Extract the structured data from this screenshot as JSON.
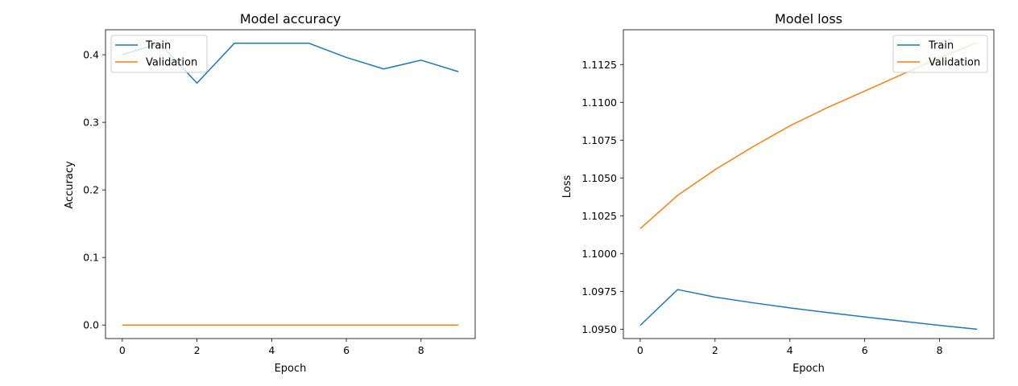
{
  "figure": {
    "background": "#ffffff",
    "series_colors": [
      "#1f77b4",
      "#ff7f0e"
    ]
  },
  "chart_data": [
    {
      "type": "line",
      "title": "Model accuracy",
      "xlabel": "Epoch",
      "ylabel": "Accuracy",
      "x": [
        0,
        1,
        2,
        3,
        4,
        5,
        6,
        7,
        8,
        9
      ],
      "xlim": [
        -0.45,
        9.45
      ],
      "ylim": [
        -0.02,
        0.437
      ],
      "xticks": [
        0,
        2,
        4,
        6,
        8
      ],
      "yticks": [
        0.0,
        0.1,
        0.2,
        0.3,
        0.4
      ],
      "ytick_labels": [
        "0.0",
        "0.1",
        "0.2",
        "0.3",
        "0.4"
      ],
      "legend_location": "upper-left",
      "series": [
        {
          "name": "Train",
          "values": [
            0.4,
            0.417,
            0.358,
            0.417,
            0.417,
            0.417,
            0.396,
            0.379,
            0.392,
            0.375
          ]
        },
        {
          "name": "Validation",
          "values": [
            0,
            0,
            0,
            0,
            0,
            0,
            0,
            0,
            0,
            0
          ]
        }
      ]
    },
    {
      "type": "line",
      "title": "Model loss",
      "xlabel": "Epoch",
      "ylabel": "Loss",
      "x": [
        0,
        1,
        2,
        3,
        4,
        5,
        6,
        7,
        8,
        9
      ],
      "xlim": [
        -0.45,
        9.45
      ],
      "ylim": [
        1.09438,
        1.1148
      ],
      "xticks": [
        0,
        2,
        4,
        6,
        8
      ],
      "yticks": [
        1.095,
        1.0975,
        1.1,
        1.1025,
        1.105,
        1.1075,
        1.11,
        1.1125
      ],
      "ytick_labels": [
        "1.0950",
        "1.0975",
        "1.1000",
        "1.1025",
        "1.1050",
        "1.1075",
        "1.1100",
        "1.1125"
      ],
      "legend_location": "upper-right",
      "series": [
        {
          "name": "Train",
          "values": [
            1.09525,
            1.09762,
            1.09712,
            1.09675,
            1.09641,
            1.0961,
            1.09581,
            1.09553,
            1.09525,
            1.095
          ]
        },
        {
          "name": "Validation",
          "values": [
            1.10165,
            1.10385,
            1.10555,
            1.10705,
            1.10845,
            1.10965,
            1.11075,
            1.11185,
            1.11295,
            1.11395
          ]
        }
      ]
    }
  ]
}
